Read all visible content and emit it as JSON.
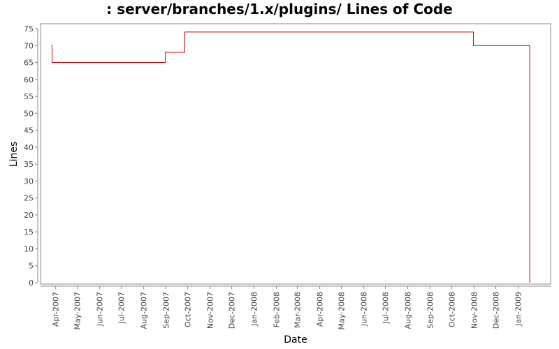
{
  "chart_data": {
    "type": "line",
    "title": ": server/branches/1.x/plugins/ Lines of Code",
    "xlabel": "Date",
    "ylabel": "Lines",
    "ylim": [
      0,
      77
    ],
    "yticks": [
      0,
      5,
      10,
      15,
      20,
      25,
      30,
      35,
      40,
      45,
      50,
      55,
      60,
      65,
      70,
      75
    ],
    "xlim": [
      "2007-03-11",
      "2009-02-15"
    ],
    "xticks": [
      {
        "date": "2007-04-01",
        "label": "Apr-2007"
      },
      {
        "date": "2007-05-01",
        "label": "May-2007"
      },
      {
        "date": "2007-06-01",
        "label": "Jun-2007"
      },
      {
        "date": "2007-07-01",
        "label": "Jul-2007"
      },
      {
        "date": "2007-08-01",
        "label": "Aug-2007"
      },
      {
        "date": "2007-09-01",
        "label": "Sep-2007"
      },
      {
        "date": "2007-10-01",
        "label": "Oct-2007"
      },
      {
        "date": "2007-11-01",
        "label": "Nov-2007"
      },
      {
        "date": "2007-12-01",
        "label": "Dec-2007"
      },
      {
        "date": "2008-01-01",
        "label": "Jan-2008"
      },
      {
        "date": "2008-02-01",
        "label": "Feb-2008"
      },
      {
        "date": "2008-03-01",
        "label": "Mar-2008"
      },
      {
        "date": "2008-04-01",
        "label": "Apr-2008"
      },
      {
        "date": "2008-05-01",
        "label": "May-2008"
      },
      {
        "date": "2008-06-01",
        "label": "Jun-2008"
      },
      {
        "date": "2008-07-01",
        "label": "Jul-2008"
      },
      {
        "date": "2008-08-01",
        "label": "Aug-2008"
      },
      {
        "date": "2008-09-01",
        "label": "Sep-2008"
      },
      {
        "date": "2008-10-01",
        "label": "Oct-2008"
      },
      {
        "date": "2008-11-01",
        "label": "Nov-2008"
      },
      {
        "date": "2008-12-01",
        "label": "Dec-2008"
      },
      {
        "date": "2009-01-01",
        "label": "Jan-2009"
      }
    ],
    "series": [
      {
        "step": true,
        "color": "#cc0000",
        "points": [
          {
            "x": "2007-03-26",
            "y": 70
          },
          {
            "x": "2007-03-27",
            "y": 65
          },
          {
            "x": "2007-08-31",
            "y": 68
          },
          {
            "x": "2007-09-27",
            "y": 74
          },
          {
            "x": "2008-10-31",
            "y": 70
          },
          {
            "x": "2009-01-17",
            "y": 0
          }
        ]
      }
    ],
    "grid": false,
    "legend": "none"
  },
  "colors": {
    "line": "#cc0000",
    "plot_border": "#888888",
    "axis": "#888888",
    "tick_label": "#444444",
    "background": "#ffffff"
  }
}
